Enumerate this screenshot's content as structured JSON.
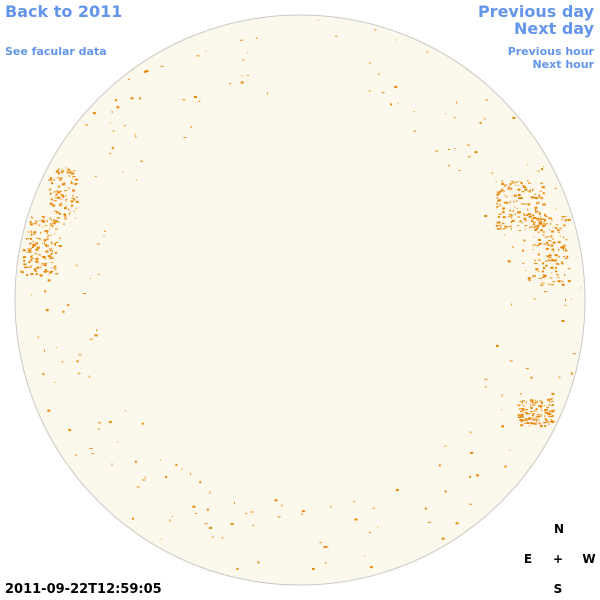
{
  "links": {
    "back": "Back to 2011",
    "facular": "See facular data",
    "prev_day": "Previous day",
    "next_day": "Next day",
    "prev_hour": "Previous hour",
    "next_hour": "Next hour"
  },
  "timestamp": "2011-09-22T12:59:05",
  "compass": {
    "north": "N",
    "east": "E",
    "center": "+",
    "west": "W",
    "south": "S"
  }
}
